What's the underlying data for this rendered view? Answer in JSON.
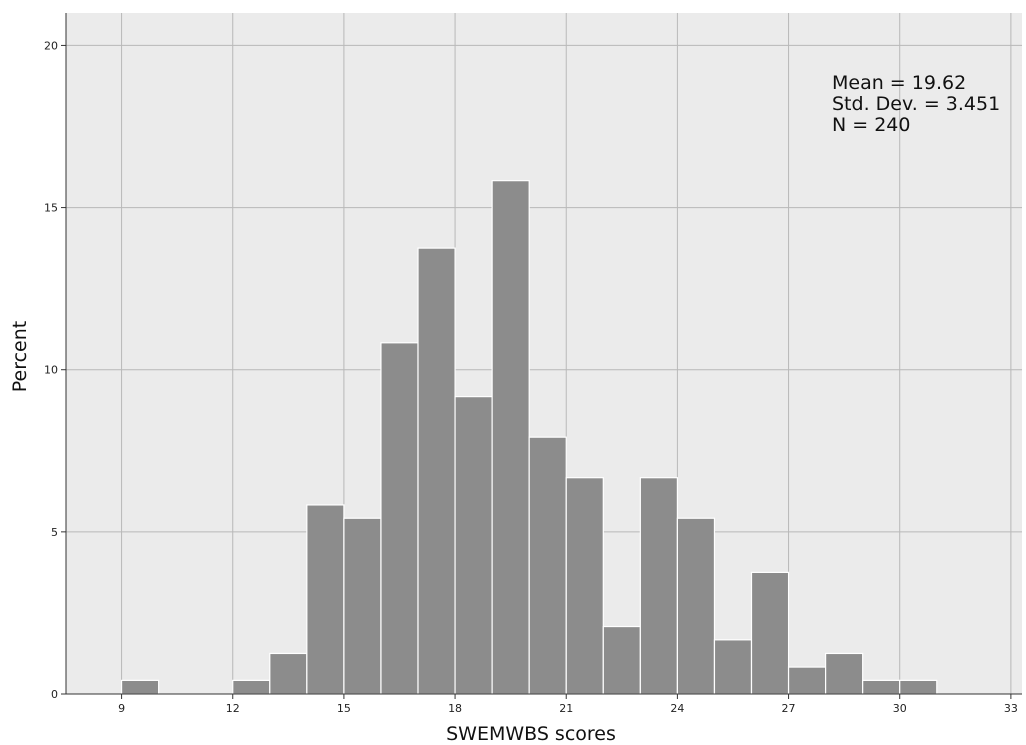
{
  "chart_data": {
    "type": "bar",
    "subtype": "histogram",
    "xlabel": "SWEMWBS scores",
    "ylabel": "Percent",
    "x_ticks": [
      9,
      12,
      15,
      18,
      21,
      24,
      27,
      30,
      33
    ],
    "y_ticks": [
      0,
      5,
      10,
      15,
      20
    ],
    "xlim": [
      7.5,
      33.3
    ],
    "ylim": [
      0,
      21
    ],
    "grid": true,
    "bar_color": "#8c8c8c",
    "plot_background": "#ebebeb",
    "bins": [
      {
        "start": 9,
        "end": 10,
        "percent": 0.42
      },
      {
        "start": 12,
        "end": 13,
        "percent": 0.42
      },
      {
        "start": 13,
        "end": 14,
        "percent": 1.25
      },
      {
        "start": 14,
        "end": 15,
        "percent": 5.83
      },
      {
        "start": 15,
        "end": 16,
        "percent": 5.42
      },
      {
        "start": 16,
        "end": 17,
        "percent": 10.83
      },
      {
        "start": 17,
        "end": 18,
        "percent": 13.75
      },
      {
        "start": 18,
        "end": 19,
        "percent": 9.17
      },
      {
        "start": 19,
        "end": 20,
        "percent": 15.83
      },
      {
        "start": 20,
        "end": 21,
        "percent": 7.92
      },
      {
        "start": 21,
        "end": 22,
        "percent": 6.67
      },
      {
        "start": 22,
        "end": 23,
        "percent": 2.08
      },
      {
        "start": 23,
        "end": 24,
        "percent": 6.67
      },
      {
        "start": 24,
        "end": 25,
        "percent": 5.42
      },
      {
        "start": 25,
        "end": 26,
        "percent": 1.67
      },
      {
        "start": 26,
        "end": 27,
        "percent": 3.75
      },
      {
        "start": 27,
        "end": 28,
        "percent": 0.83
      },
      {
        "start": 28,
        "end": 29,
        "percent": 1.25
      },
      {
        "start": 29,
        "end": 30,
        "percent": 0.42
      },
      {
        "start": 30,
        "end": 31,
        "percent": 0.42
      }
    ],
    "annotations": {
      "mean": "Mean = 19.62",
      "std_dev": "Std. Dev. = 3.451",
      "n": "N = 240"
    }
  }
}
